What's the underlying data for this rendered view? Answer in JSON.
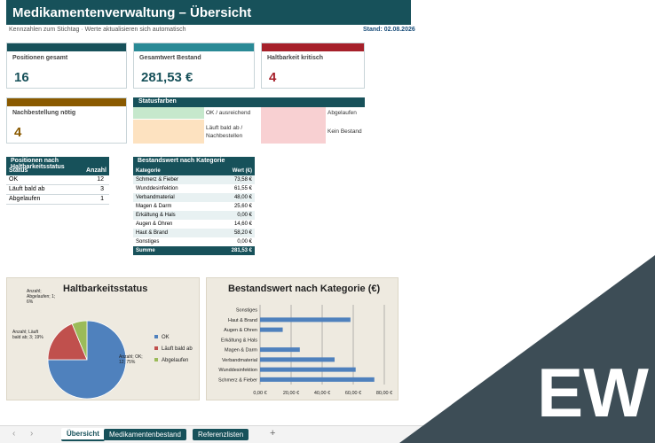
{
  "header": {
    "title": "Medikamentenverwaltung – Übersicht",
    "subtitle": "Kennzahlen zum Stichtag  ·  Werte aktualisieren sich automatisch",
    "stand": "Stand: 02.08.2026"
  },
  "kpis": [
    {
      "label": "Positionen gesamt",
      "value": "16",
      "bar_color": "#17515a",
      "value_color": "#17515a"
    },
    {
      "label": "Gesamtwert Bestand",
      "value": "281,53 €",
      "bar_color": "#2a8a96",
      "value_color": "#17515a"
    },
    {
      "label": "Haltbarkeit kritisch",
      "value": "4",
      "bar_color": "#a6202a",
      "value_color": "#a6202a"
    },
    {
      "label": "Nachbestellung nötig",
      "value": "4",
      "bar_color": "#8a5a00",
      "value_color": "#8a5a00"
    }
  ],
  "status_colors": {
    "title": "Statusfarben",
    "items": [
      {
        "label": "OK / ausreichend",
        "color": "#c6e8cc"
      },
      {
        "label": "Läuft bald ab / Nachbestellen",
        "color": "#fde2c0"
      },
      {
        "label": "Abgelaufen",
        "color": "#f8d0d2"
      },
      {
        "label": "Kein Bestand",
        "color": "#f8d0d2"
      }
    ]
  },
  "status_table": {
    "title": "Positionen nach Haltbarkeitsstatus",
    "col1": "Status",
    "col2": "Anzahl",
    "rows": [
      {
        "status": "OK",
        "count": "12"
      },
      {
        "status": "Läuft bald ab",
        "count": "3"
      },
      {
        "status": "Abgelaufen",
        "count": "1"
      }
    ]
  },
  "category_table": {
    "title": "Bestandswert nach Kategorie",
    "col1": "Kategorie",
    "col2": "Wert (€)",
    "rows": [
      {
        "name": "Schmerz & Fieber",
        "value": "73,58 €"
      },
      {
        "name": "Wunddesinfektion",
        "value": "61,55 €"
      },
      {
        "name": "Verbandmaterial",
        "value": "48,00 €"
      },
      {
        "name": "Magen & Darm",
        "value": "25,60 €"
      },
      {
        "name": "Erkältung & Hals",
        "value": "0,00 €"
      },
      {
        "name": "Augen & Ohren",
        "value": "14,60 €"
      },
      {
        "name": "Haut & Brand",
        "value": "58,20 €"
      },
      {
        "name": "Sonstiges",
        "value": "0,00 €"
      }
    ],
    "sum_label": "Summe",
    "sum_value": "281,53 €"
  },
  "chart_data": [
    {
      "type": "pie",
      "title": "Haltbarkeitsstatus",
      "categories": [
        "OK",
        "Läuft bald ab",
        "Abgelaufen"
      ],
      "values": [
        12,
        3,
        1
      ],
      "colors": [
        "#4f81bd",
        "#c0504d",
        "#9bbb59"
      ],
      "data_labels": [
        "Anzahl; OK; 12; 75%",
        "Anzahl; Läuft bald ab; 3; 19%",
        "Anzahl; Abgelaufen; 1; 6%"
      ],
      "legend": "right"
    },
    {
      "type": "bar",
      "orientation": "horizontal",
      "title": "Bestandswert nach Kategorie (€)",
      "categories": [
        "Schmerz & Fieber",
        "Wunddesinfektion",
        "Verbandmaterial",
        "Magen & Darm",
        "Erkältung & Hals",
        "Augen & Ohren",
        "Haut & Brand",
        "Sonstiges"
      ],
      "values": [
        73.58,
        61.55,
        48.0,
        25.6,
        0.0,
        14.6,
        58.2,
        0.0
      ],
      "xlim": [
        0,
        80
      ],
      "ticks": [
        "0,00 €",
        "20,00 €",
        "40,00 €",
        "60,00 €",
        "80,00 €"
      ],
      "color": "#4f81bd",
      "grid": true
    }
  ],
  "tabs": {
    "nav_prev": "‹",
    "nav_next": "›",
    "items": [
      {
        "label": "Übersicht",
        "active": true
      },
      {
        "label": "Medikamentenbestand",
        "active": false
      },
      {
        "label": "Referenzlisten",
        "active": false
      }
    ],
    "add": "+"
  },
  "watermark": {
    "text": "EW",
    "bg": "#3d4d56"
  }
}
